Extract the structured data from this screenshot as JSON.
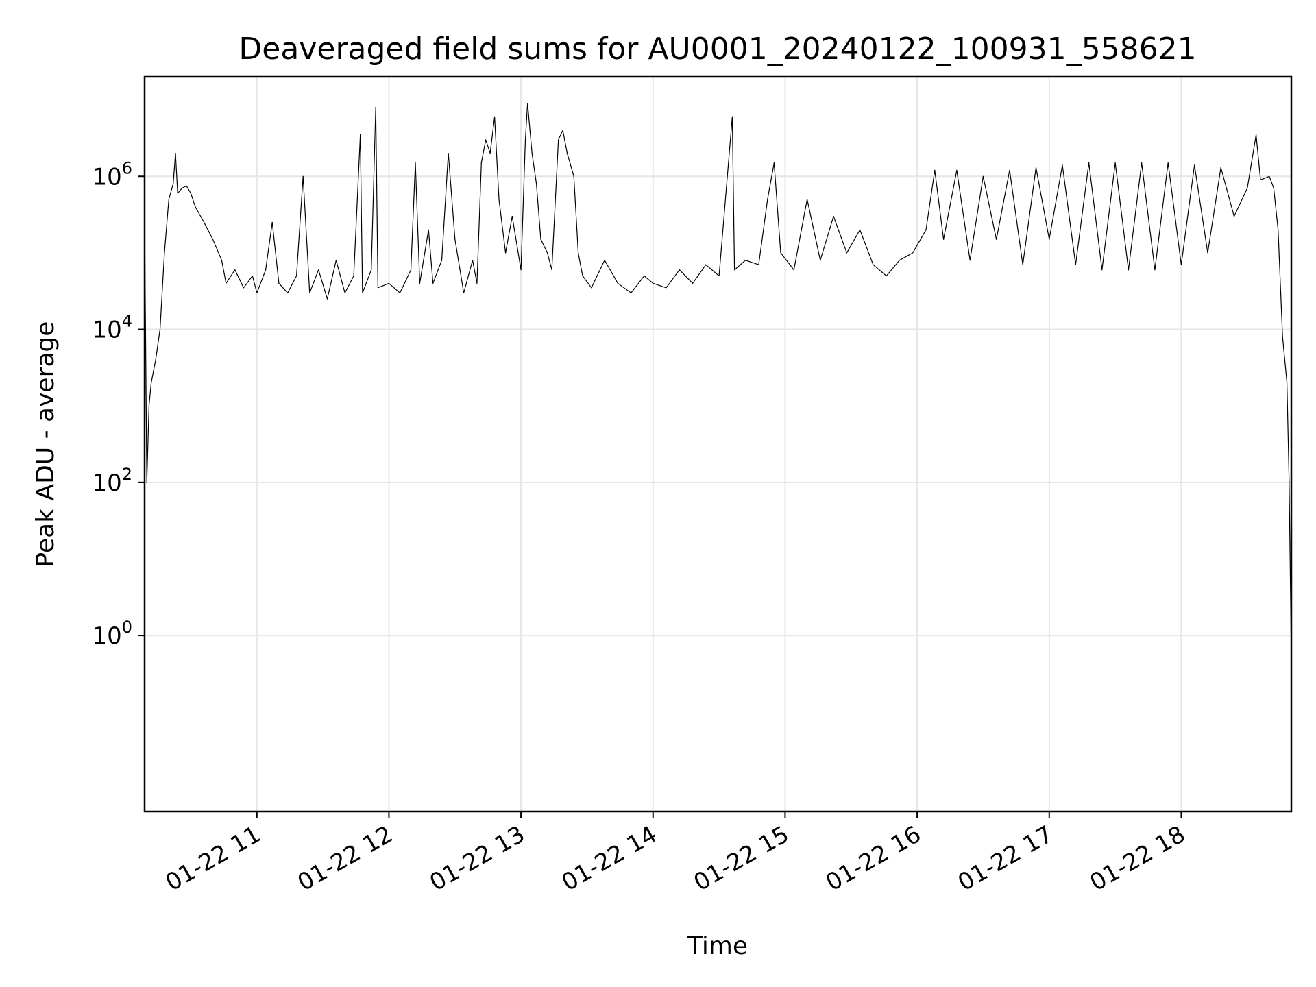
{
  "chart_data": {
    "type": "line",
    "title": "Deaveraged field sums for AU0001_20240122_100931_558621",
    "xlabel": "Time",
    "ylabel": "Peak ADU - average",
    "x_scale": "time",
    "y_scale": "log",
    "xlim": [
      "01-22 10:09",
      "01-22 18:50"
    ],
    "ylim": [
      0.005,
      20000000
    ],
    "grid": true,
    "x_ticks": [
      {
        "hour": 11,
        "label": "01-22 11"
      },
      {
        "hour": 12,
        "label": "01-22 12"
      },
      {
        "hour": 13,
        "label": "01-22 13"
      },
      {
        "hour": 14,
        "label": "01-22 14"
      },
      {
        "hour": 15,
        "label": "01-22 15"
      },
      {
        "hour": 16,
        "label": "01-22 16"
      },
      {
        "hour": 17,
        "label": "01-22 17"
      },
      {
        "hour": 18,
        "label": "01-22 18"
      }
    ],
    "y_ticks": [
      {
        "value": 1,
        "base": "10",
        "exp": "0"
      },
      {
        "value": 100,
        "base": "10",
        "exp": "2"
      },
      {
        "value": 10000,
        "base": "10",
        "exp": "4"
      },
      {
        "value": 1000000,
        "base": "10",
        "exp": "6"
      }
    ],
    "series": [
      {
        "color": "#000000",
        "points": [
          [
            "10:09",
            300000
          ],
          [
            "10:10",
            100
          ],
          [
            "10:11",
            1000
          ],
          [
            "10:12",
            2000
          ],
          [
            "10:14",
            4000
          ],
          [
            "10:16",
            10000
          ],
          [
            "10:18",
            100000
          ],
          [
            "10:20",
            500000
          ],
          [
            "10:22",
            800000
          ],
          [
            "10:23",
            2000000
          ],
          [
            "10:24",
            600000
          ],
          [
            "10:26",
            700000
          ],
          [
            "10:28",
            750000
          ],
          [
            "10:30",
            600000
          ],
          [
            "10:32",
            400000
          ],
          [
            "10:36",
            250000
          ],
          [
            "10:40",
            150000
          ],
          [
            "10:44",
            80000
          ],
          [
            "10:46",
            40000
          ],
          [
            "10:50",
            60000
          ],
          [
            "10:54",
            35000
          ],
          [
            "10:58",
            50000
          ],
          [
            "11:00",
            30000
          ],
          [
            "11:04",
            60000
          ],
          [
            "11:07",
            250000
          ],
          [
            "11:10",
            40000
          ],
          [
            "11:14",
            30000
          ],
          [
            "11:18",
            50000
          ],
          [
            "11:21",
            1000000
          ],
          [
            "11:24",
            30000
          ],
          [
            "11:28",
            60000
          ],
          [
            "11:32",
            25000
          ],
          [
            "11:36",
            80000
          ],
          [
            "11:40",
            30000
          ],
          [
            "11:44",
            50000
          ],
          [
            "11:47",
            3500000
          ],
          [
            "11:48",
            30000
          ],
          [
            "11:52",
            60000
          ],
          [
            "11:54",
            8000000
          ],
          [
            "11:55",
            35000
          ],
          [
            "12:00",
            40000
          ],
          [
            "12:05",
            30000
          ],
          [
            "12:10",
            60000
          ],
          [
            "12:12",
            1500000
          ],
          [
            "12:14",
            40000
          ],
          [
            "12:18",
            200000
          ],
          [
            "12:20",
            40000
          ],
          [
            "12:24",
            80000
          ],
          [
            "12:27",
            2000000
          ],
          [
            "12:30",
            150000
          ],
          [
            "12:34",
            30000
          ],
          [
            "12:38",
            80000
          ],
          [
            "12:40",
            40000
          ],
          [
            "12:42",
            1500000
          ],
          [
            "12:44",
            3000000
          ],
          [
            "12:46",
            2000000
          ],
          [
            "12:48",
            6000000
          ],
          [
            "12:50",
            500000
          ],
          [
            "12:53",
            100000
          ],
          [
            "12:56",
            300000
          ],
          [
            "13:00",
            60000
          ],
          [
            "13:02",
            3000000
          ],
          [
            "13:03",
            9000000
          ],
          [
            "13:05",
            2000000
          ],
          [
            "13:07",
            800000
          ],
          [
            "13:09",
            150000
          ],
          [
            "13:12",
            100000
          ],
          [
            "13:14",
            60000
          ],
          [
            "13:17",
            3000000
          ],
          [
            "13:19",
            4000000
          ],
          [
            "13:21",
            2000000
          ],
          [
            "13:24",
            1000000
          ],
          [
            "13:26",
            100000
          ],
          [
            "13:28",
            50000
          ],
          [
            "13:32",
            35000
          ],
          [
            "13:38",
            80000
          ],
          [
            "13:44",
            40000
          ],
          [
            "13:50",
            30000
          ],
          [
            "13:56",
            50000
          ],
          [
            "14:00",
            40000
          ],
          [
            "14:06",
            35000
          ],
          [
            "14:12",
            60000
          ],
          [
            "14:18",
            40000
          ],
          [
            "14:24",
            70000
          ],
          [
            "14:30",
            50000
          ],
          [
            "14:36",
            6000000
          ],
          [
            "14:37",
            60000
          ],
          [
            "14:42",
            80000
          ],
          [
            "14:48",
            70000
          ],
          [
            "14:52",
            500000
          ],
          [
            "14:55",
            1500000
          ],
          [
            "14:58",
            100000
          ],
          [
            "15:04",
            60000
          ],
          [
            "15:10",
            500000
          ],
          [
            "15:16",
            80000
          ],
          [
            "15:22",
            300000
          ],
          [
            "15:28",
            100000
          ],
          [
            "15:34",
            200000
          ],
          [
            "15:40",
            70000
          ],
          [
            "15:46",
            50000
          ],
          [
            "15:52",
            80000
          ],
          [
            "15:58",
            100000
          ],
          [
            "16:04",
            200000
          ],
          [
            "16:08",
            1200000
          ],
          [
            "16:12",
            150000
          ],
          [
            "16:18",
            1200000
          ],
          [
            "16:24",
            80000
          ],
          [
            "16:30",
            1000000
          ],
          [
            "16:36",
            150000
          ],
          [
            "16:42",
            1200000
          ],
          [
            "16:48",
            70000
          ],
          [
            "16:54",
            1300000
          ],
          [
            "17:00",
            150000
          ],
          [
            "17:06",
            1400000
          ],
          [
            "17:12",
            70000
          ],
          [
            "17:18",
            1500000
          ],
          [
            "17:24",
            60000
          ],
          [
            "17:30",
            1500000
          ],
          [
            "17:36",
            60000
          ],
          [
            "17:42",
            1500000
          ],
          [
            "17:48",
            60000
          ],
          [
            "17:54",
            1500000
          ],
          [
            "18:00",
            70000
          ],
          [
            "18:06",
            1400000
          ],
          [
            "18:12",
            100000
          ],
          [
            "18:18",
            1300000
          ],
          [
            "18:24",
            300000
          ],
          [
            "18:30",
            700000
          ],
          [
            "18:34",
            3500000
          ],
          [
            "18:36",
            900000
          ],
          [
            "18:40",
            1000000
          ],
          [
            "18:42",
            700000
          ],
          [
            "18:44",
            200000
          ],
          [
            "18:46",
            8000
          ],
          [
            "18:48",
            2000
          ],
          [
            "18:49",
            100
          ],
          [
            "18:50",
            0.5
          ],
          [
            "18:50",
            0.01
          ]
        ]
      }
    ]
  }
}
